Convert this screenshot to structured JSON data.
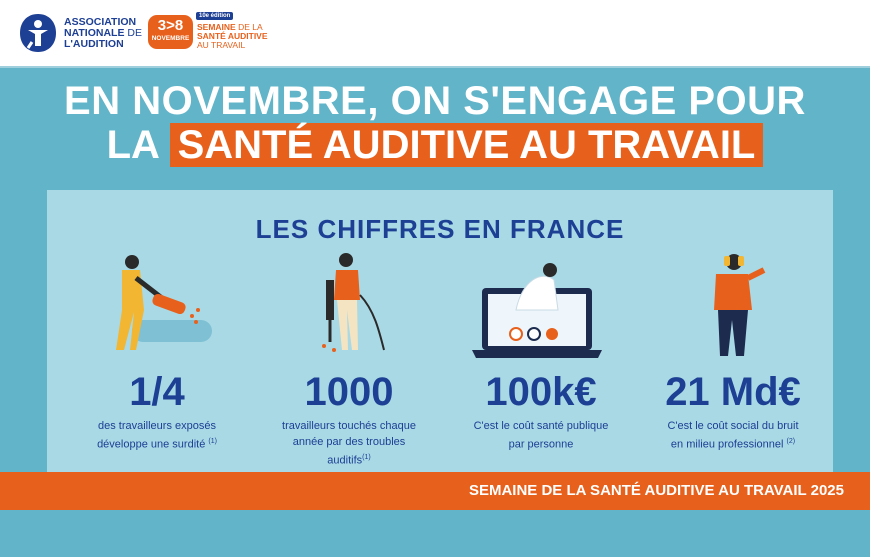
{
  "header": {
    "ana_line1": "ASSOCIATION",
    "ana_line2a": "NATIONALE",
    "ana_line2b": "DE",
    "ana_line3": "L'AUDITION",
    "badge_number": "3>8",
    "badge_month": "NOVEMBRE",
    "edition": "10e édition",
    "semaine_line1a": "SEMAINE",
    "semaine_line1b": "DE LA",
    "semaine_line2": "SANTÉ AUDITIVE",
    "semaine_line3": "AU TRAVAIL"
  },
  "headline": {
    "line1": "EN NOVEMBRE, ON S'ENGAGE POUR",
    "line2_prefix": "LA",
    "line2_highlight": "SANTÉ AUDITIVE AU TRAVAIL"
  },
  "panel": {
    "title": "LES CHIFFRES EN FRANCE",
    "stats": [
      {
        "value": "1/4",
        "desc": "des travailleurs exposés développe une surdité",
        "note": "(1)",
        "icon": "worker-leaf-blower-icon"
      },
      {
        "value": "1000",
        "desc": "travailleurs touchés chaque année par des troubles auditifs",
        "note": "(1)",
        "icon": "worker-jackhammer-icon"
      },
      {
        "value": "100k€",
        "desc": "C'est le coût santé publique par personne",
        "note": "",
        "icon": "teleconsultation-laptop-icon"
      },
      {
        "value": "21 Md€",
        "desc": "C'est le coût social du bruit en milieu professionnel",
        "note": "(2)",
        "icon": "worker-ear-defenders-icon"
      }
    ]
  },
  "footer": {
    "text": "SEMAINE DE LA SANTÉ AUDITIVE AU TRAVAIL 2025"
  },
  "colors": {
    "background": "#62b4c8",
    "panel": "#a9d9e5",
    "accent_orange": "#e8611c",
    "navy": "#1d3f94"
  }
}
